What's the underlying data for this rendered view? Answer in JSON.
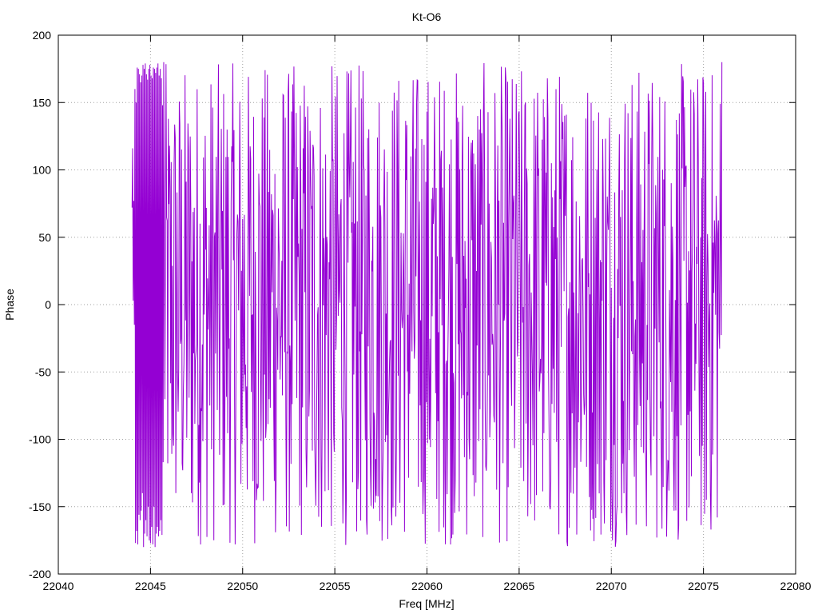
{
  "chart_data": {
    "type": "line",
    "title": "Kt-O6",
    "xlabel": "Freq [MHz]",
    "ylabel": "Phase",
    "xlim": [
      22040,
      22080
    ],
    "ylim": [
      -200,
      200
    ],
    "xticks": [
      22040,
      22045,
      22050,
      22055,
      22060,
      22065,
      22070,
      22075,
      22080
    ],
    "yticks": [
      -200,
      -150,
      -100,
      -50,
      0,
      50,
      100,
      150,
      200
    ],
    "grid": true,
    "legend": "none",
    "series": [
      {
        "color": "#9400d3",
        "x_start": 22044.0,
        "x_end": 22076.0,
        "x_step": 0.03125,
        "y_range": [
          -180,
          180
        ],
        "y_anchor_values": [
          72,
          116,
          3,
          77,
          -15,
          160,
          -177,
          150,
          -168,
          176,
          -178,
          175,
          -156,
          171,
          -160,
          165,
          -153,
          170,
          -140,
          178,
          -180,
          175,
          -170,
          179,
          -160,
          171,
          -172,
          167,
          -150,
          175,
          -175,
          178,
          -177,
          170,
          -165,
          168,
          -178,
          176,
          -150,
          175,
          -180,
          172,
          -170,
          176,
          -165,
          179,
          -172,
          170,
          -168,
          175,
          -160,
          168,
          -171,
          148,
          -117,
          180
        ]
      }
    ]
  }
}
